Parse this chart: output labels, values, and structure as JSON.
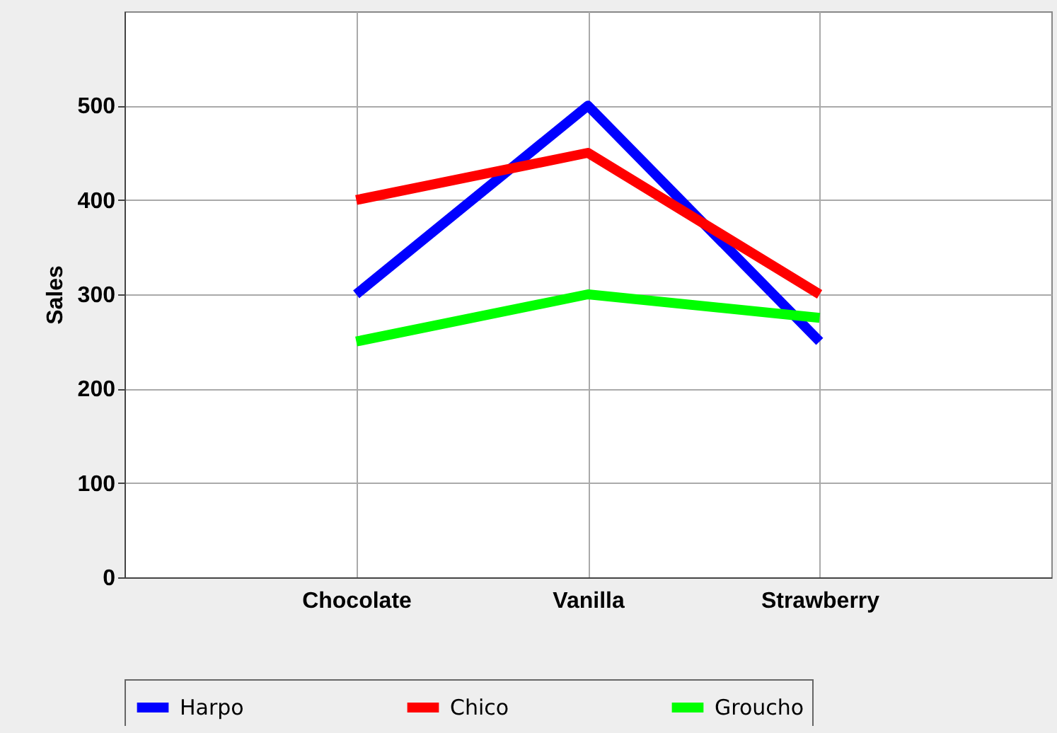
{
  "chart_data": {
    "type": "line",
    "ylabel": "Sales",
    "categories": [
      "Chocolate",
      "Vanilla",
      "Strawberry"
    ],
    "series": [
      {
        "name": "Harpo",
        "color": "#0000ff",
        "values": [
          300,
          500,
          250
        ]
      },
      {
        "name": "Chico",
        "color": "#ff0000",
        "values": [
          400,
          450,
          300
        ]
      },
      {
        "name": "Groucho",
        "color": "#00ff00",
        "values": [
          250,
          300,
          275
        ]
      }
    ],
    "ylim": [
      0,
      600
    ],
    "yticks": [
      0,
      100,
      200,
      300,
      400,
      500
    ],
    "grid": true,
    "legend": "bottom",
    "marker": "none",
    "line_style": "solid"
  }
}
